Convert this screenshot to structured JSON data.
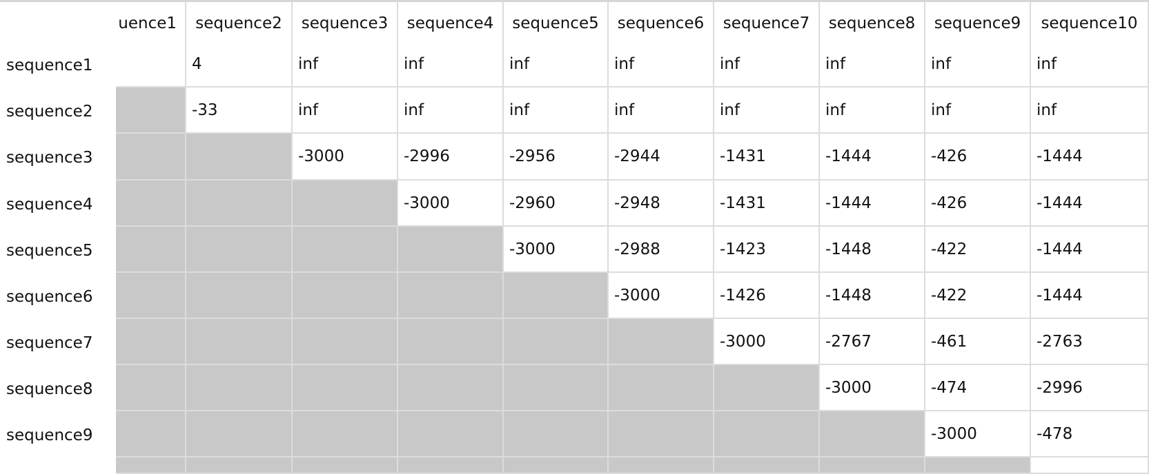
{
  "table": {
    "columns": [
      "uence1",
      "sequence2",
      "sequence3",
      "sequence4",
      "sequence5",
      "sequence6",
      "sequence7",
      "sequence8",
      "sequence9",
      "sequence10"
    ],
    "rows": [
      {
        "label": "sequence1",
        "cells": [
          "",
          "4",
          "inf",
          "inf",
          "inf",
          "inf",
          "inf",
          "inf",
          "inf",
          "inf"
        ]
      },
      {
        "label": "sequence2",
        "cells": [
          "",
          "-33",
          "inf",
          "inf",
          "inf",
          "inf",
          "inf",
          "inf",
          "inf",
          "inf"
        ]
      },
      {
        "label": "sequence3",
        "cells": [
          "",
          "",
          "-3000",
          "-2996",
          "-2956",
          "-2944",
          "-1431",
          "-1444",
          "-426",
          "-1444"
        ]
      },
      {
        "label": "sequence4",
        "cells": [
          "",
          "",
          "",
          "-3000",
          "-2960",
          "-2948",
          "-1431",
          "-1444",
          "-426",
          "-1444"
        ]
      },
      {
        "label": "sequence5",
        "cells": [
          "",
          "",
          "",
          "",
          "-3000",
          "-2988",
          "-1423",
          "-1448",
          "-422",
          "-1444"
        ]
      },
      {
        "label": "sequence6",
        "cells": [
          "",
          "",
          "",
          "",
          "",
          "-3000",
          "-1426",
          "-1448",
          "-422",
          "-1444"
        ]
      },
      {
        "label": "sequence7",
        "cells": [
          "",
          "",
          "",
          "",
          "",
          "",
          "-3000",
          "-2767",
          "-461",
          "-2763"
        ]
      },
      {
        "label": "sequence8",
        "cells": [
          "",
          "",
          "",
          "",
          "",
          "",
          "",
          "-3000",
          "-474",
          "-2996"
        ]
      },
      {
        "label": "sequence9",
        "cells": [
          "",
          "",
          "",
          "",
          "",
          "",
          "",
          "",
          "-3000",
          "-478"
        ]
      },
      {
        "label": "",
        "cells": [
          "",
          "",
          "",
          "",
          "",
          "",
          "",
          "",
          "",
          ""
        ]
      }
    ],
    "shaded_cells_per_row": [
      0,
      1,
      2,
      3,
      4,
      5,
      6,
      7,
      8,
      9
    ],
    "colors": {
      "shaded": "#c8c8c8",
      "grid": "#dcdcdc",
      "background": "#ffffff"
    }
  }
}
